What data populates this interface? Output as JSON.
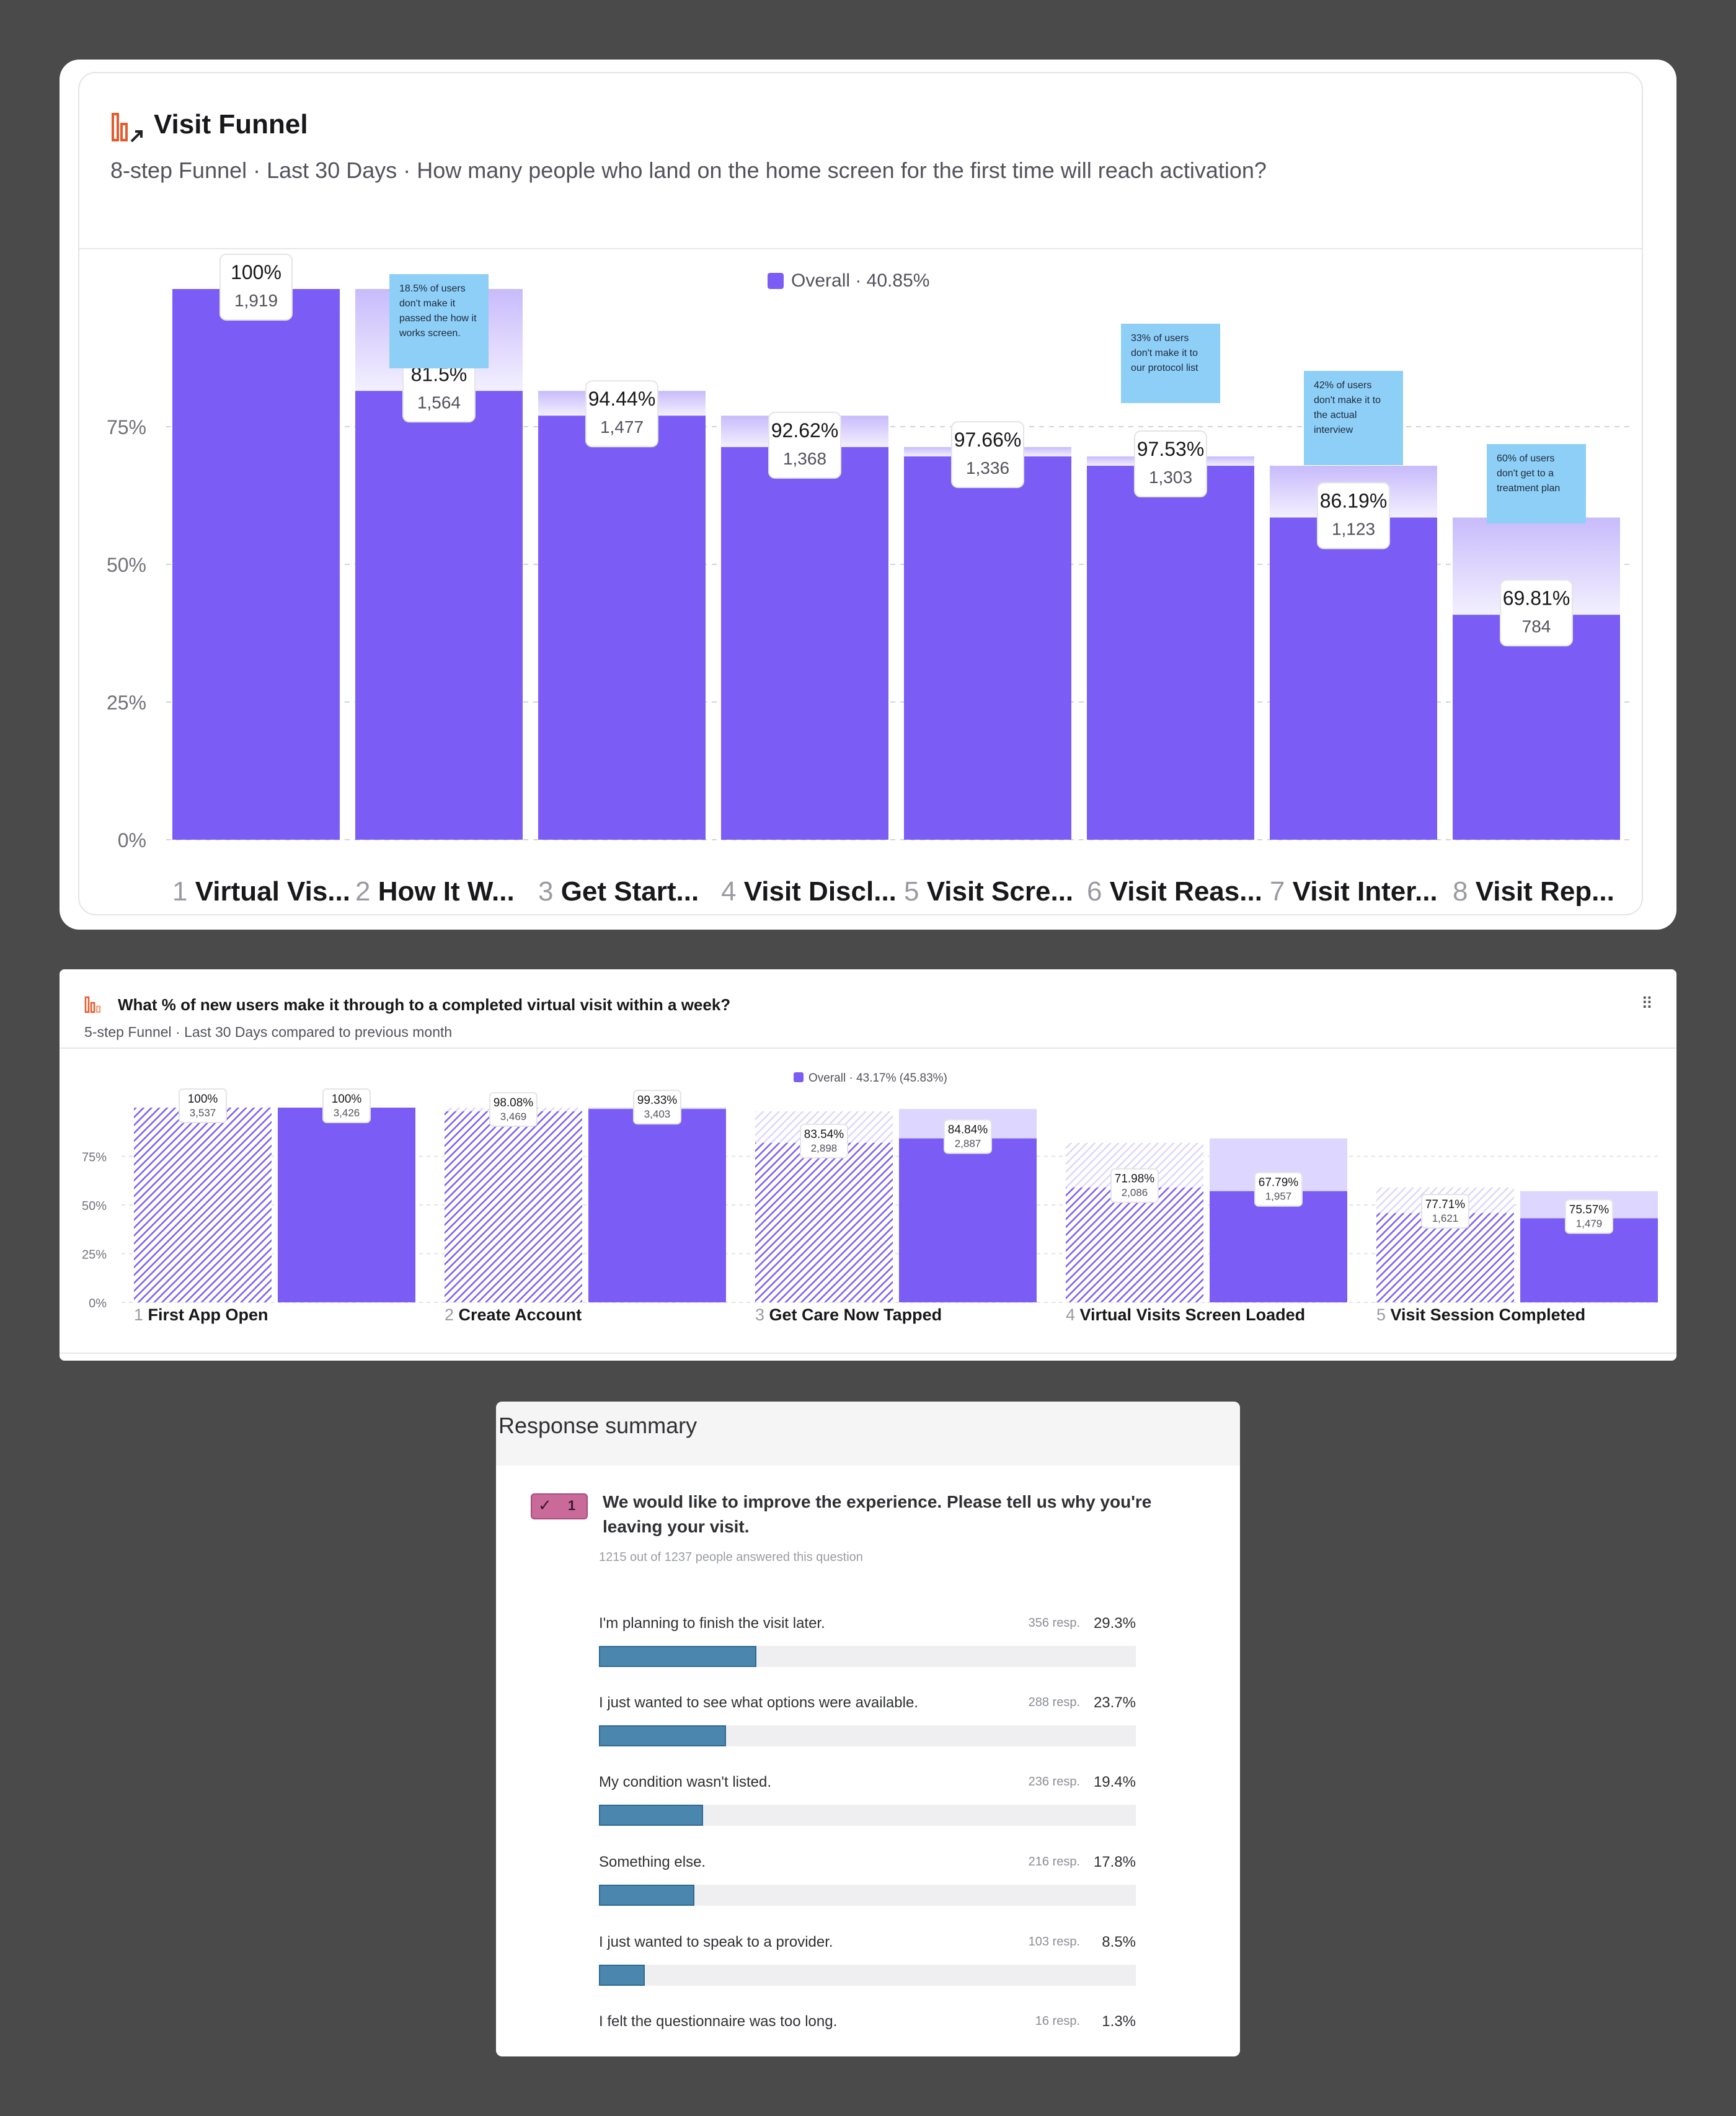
{
  "funnel1": {
    "title": "Visit Funnel",
    "subtitle": "8-step Funnel · Last 30 Days · How many people who land on the home screen for the first time will reach activation?",
    "legend": "Overall · 40.85%"
  },
  "funnel2": {
    "title": "What % of new users make it through to a completed virtual visit within a week?",
    "subtitle": "5-step Funnel · Last 30 Days compared to previous month",
    "legend": "Overall · 43.17% (45.83%)",
    "menu_icon": "⠿"
  },
  "colors": {
    "bar": "#7b5cf5",
    "ghost": "#ddd6fe",
    "note": "#8ecff8",
    "accent": "#e35b2d",
    "survey_bar": "#4a86ad"
  },
  "chart_data": [
    {
      "type": "bar",
      "title": "Visit Funnel",
      "ylim": [
        0,
        100
      ],
      "yticks": [
        "0%",
        "25%",
        "50%",
        "75%"
      ],
      "categories": [
        "Virtual Vis...",
        "How It W...",
        "Get Start...",
        "Visit Discl...",
        "Visit Scre...",
        "Visit Reas...",
        "Visit Inter...",
        "Visit Rep..."
      ],
      "step_numbers": [
        "1",
        "2",
        "3",
        "4",
        "5",
        "6",
        "7",
        "8"
      ],
      "overall_percent": [
        100,
        81.5,
        77.0,
        71.3,
        69.6,
        67.9,
        58.5,
        40.85
      ],
      "step_conversion": [
        "100%",
        "81.5%",
        "94.44%",
        "92.62%",
        "97.66%",
        "97.53%",
        "86.19%",
        "69.81%"
      ],
      "counts": [
        "1,919",
        "1,564",
        "1,477",
        "1,368",
        "1,336",
        "1,303",
        "1,123",
        "784"
      ],
      "notes": [
        {
          "step": 2,
          "text": [
            "18.5% of users",
            "don't make it",
            "passed the how it",
            "works screen."
          ]
        },
        {
          "step": 6,
          "text": [
            "33% of users",
            "don't make it to",
            "our protocol list"
          ]
        },
        {
          "step": 7,
          "text": [
            "42% of users",
            "don't make it to",
            "the actual",
            "interview"
          ]
        },
        {
          "step": 8,
          "text": [
            "60% of users",
            "don't get to a",
            "treatment plan"
          ]
        }
      ]
    },
    {
      "type": "bar",
      "title": "What % of new users make it through to a completed virtual visit within a week?",
      "ylim": [
        0,
        100
      ],
      "yticks": [
        "0%",
        "25%",
        "50%",
        "75%"
      ],
      "categories": [
        "First App Open",
        "Create Account",
        "Get Care Now Tapped",
        "Virtual Visits Screen Loaded",
        "Visit Session Completed"
      ],
      "step_numbers": [
        "1",
        "2",
        "3",
        "4",
        "5"
      ],
      "series": [
        {
          "name": "previous month",
          "overall_percent": [
            100,
            98.1,
            81.9,
            59.0,
            45.83
          ],
          "step_conversion": [
            "100%",
            "98.08%",
            "83.54%",
            "71.98%",
            "77.71%"
          ],
          "counts": [
            "3,537",
            "3,469",
            "2,898",
            "2,086",
            "1,621"
          ]
        },
        {
          "name": "Overall",
          "overall_percent": [
            100,
            99.3,
            84.2,
            57.1,
            43.17
          ],
          "step_conversion": [
            "100%",
            "99.33%",
            "84.84%",
            "67.79%",
            "75.57%"
          ],
          "counts": [
            "3,426",
            "3,403",
            "2,887",
            "1,957",
            "1,479"
          ]
        }
      ]
    },
    {
      "type": "bar",
      "title": "Response summary",
      "question_number": "1",
      "question": "We would like to improve the experience. Please tell us why you're leaving your visit.",
      "answered": "1215 out of 1237 people answered this question",
      "categories": [
        "I'm planning to finish the visit later.",
        "I just wanted to see what options were available.",
        "My condition wasn't listed.",
        "Something else.",
        "I just wanted to speak to a provider.",
        "I felt the questionnaire was too long."
      ],
      "responses": [
        "356 resp.",
        "288 resp.",
        "236 resp.",
        "216 resp.",
        "103 resp.",
        "16 resp."
      ],
      "percents": [
        "29.3%",
        "23.7%",
        "19.4%",
        "17.8%",
        "8.5%",
        "1.3%"
      ],
      "values": [
        29.3,
        23.7,
        19.4,
        17.8,
        8.5,
        1.3
      ]
    }
  ]
}
